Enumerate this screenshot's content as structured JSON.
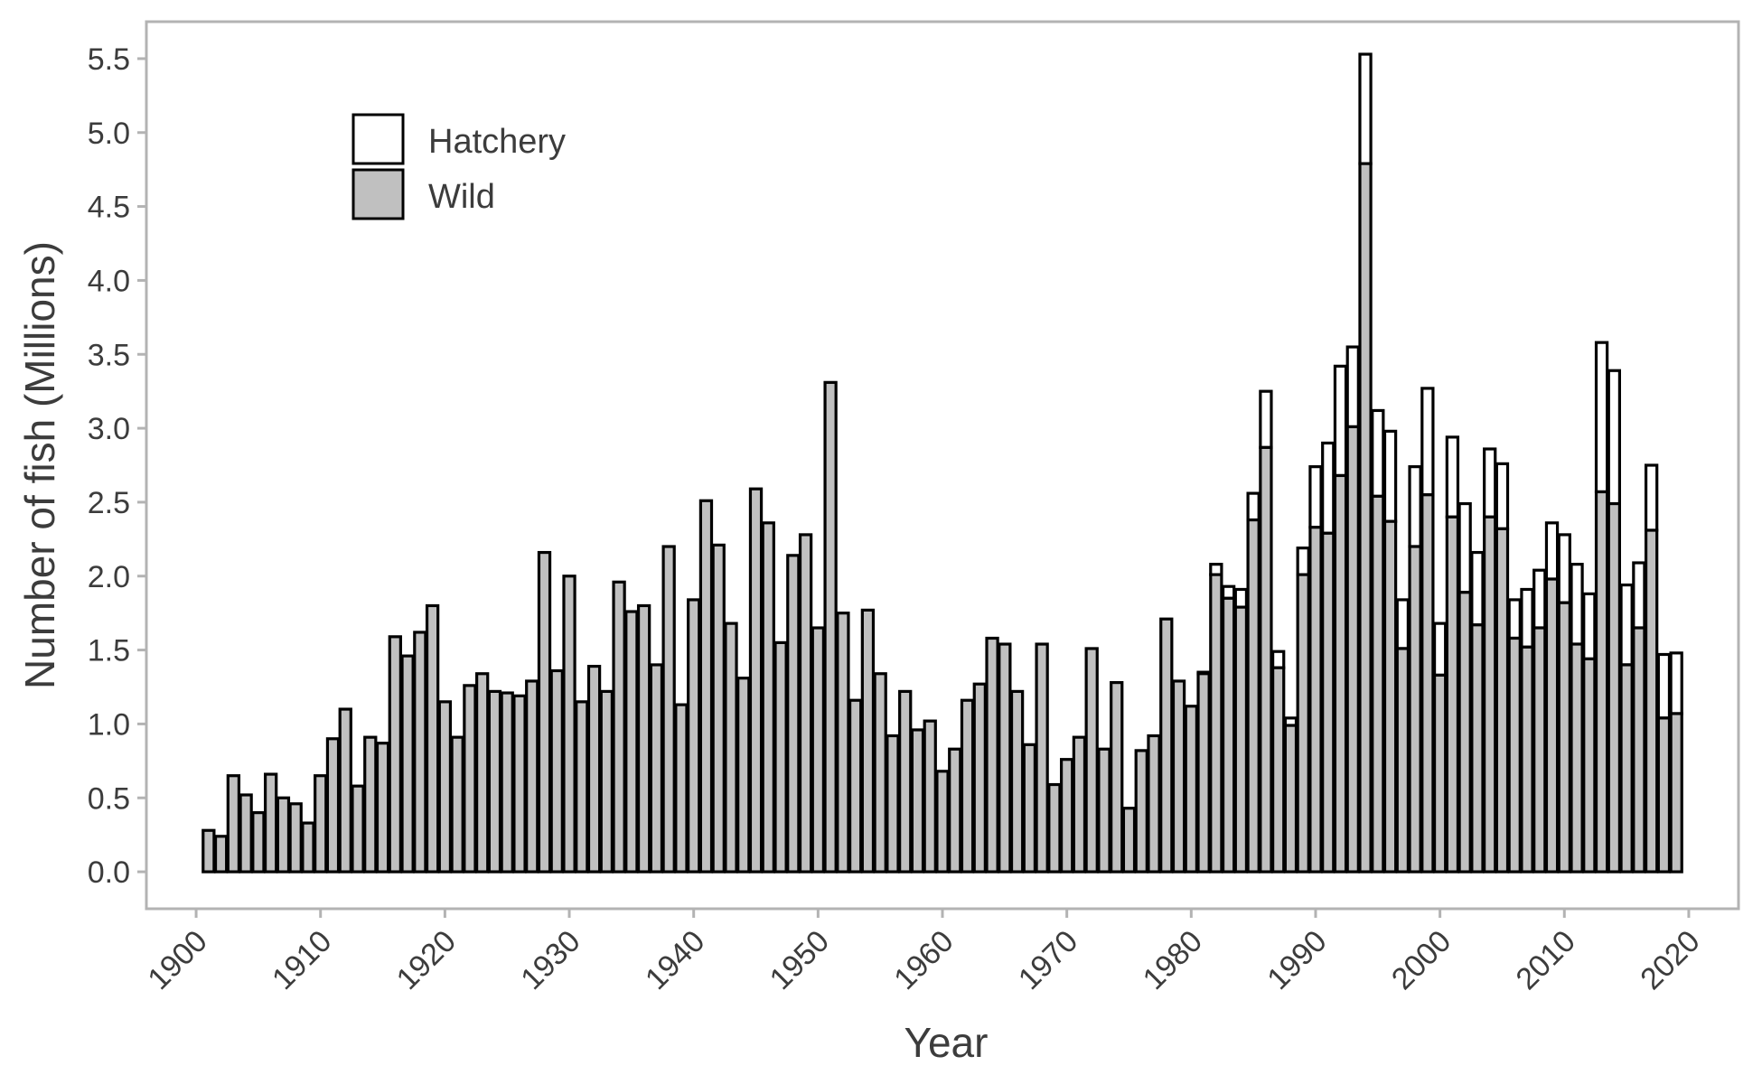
{
  "chart_data": {
    "type": "bar",
    "stacked": true,
    "xlabel": "Year",
    "ylabel": "Number of fish (Millions)",
    "ylim": [
      -0.25,
      5.75
    ],
    "xlim": [
      1896,
      2024
    ],
    "yticks": [
      0.0,
      0.5,
      1.0,
      1.5,
      2.0,
      2.5,
      3.0,
      3.5,
      4.0,
      4.5,
      5.0,
      5.5
    ],
    "ytick_labels": [
      "0.0",
      "0.5",
      "1.0",
      "1.5",
      "2.0",
      "2.5",
      "3.0",
      "3.5",
      "4.0",
      "4.5",
      "5.0",
      "5.5"
    ],
    "xticks": [
      1900,
      1910,
      1920,
      1930,
      1940,
      1950,
      1960,
      1970,
      1980,
      1990,
      2000,
      2010,
      2020
    ],
    "xtick_labels": [
      "1900",
      "1910",
      "1920",
      "1930",
      "1940",
      "1950",
      "1960",
      "1970",
      "1980",
      "1990",
      "2000",
      "2010",
      "2020"
    ],
    "grid": false,
    "legend_position": "top-left",
    "years": [
      1901,
      1902,
      1903,
      1904,
      1905,
      1906,
      1907,
      1908,
      1909,
      1910,
      1911,
      1912,
      1913,
      1914,
      1915,
      1916,
      1917,
      1918,
      1919,
      1920,
      1921,
      1922,
      1923,
      1924,
      1925,
      1926,
      1927,
      1928,
      1929,
      1930,
      1931,
      1932,
      1933,
      1934,
      1935,
      1936,
      1937,
      1938,
      1939,
      1940,
      1941,
      1942,
      1943,
      1944,
      1945,
      1946,
      1947,
      1948,
      1949,
      1950,
      1951,
      1952,
      1953,
      1954,
      1955,
      1956,
      1957,
      1958,
      1959,
      1960,
      1961,
      1962,
      1963,
      1964,
      1965,
      1966,
      1967,
      1968,
      1969,
      1970,
      1971,
      1972,
      1973,
      1974,
      1975,
      1976,
      1977,
      1978,
      1979,
      1980,
      1981,
      1982,
      1983,
      1984,
      1985,
      1986,
      1987,
      1988,
      1989,
      1990,
      1991,
      1992,
      1993,
      1994,
      1995,
      1996,
      1997,
      1998,
      1999,
      2000,
      2001,
      2002,
      2003,
      2004,
      2005,
      2006,
      2007,
      2008,
      2009,
      2010,
      2011,
      2012,
      2013,
      2014,
      2015,
      2016,
      2017,
      2018,
      2019
    ],
    "series": [
      {
        "name": "Wild",
        "color": "#c0c0c0",
        "values": [
          0.28,
          0.24,
          0.65,
          0.52,
          0.4,
          0.66,
          0.5,
          0.46,
          0.33,
          0.65,
          0.9,
          1.1,
          0.58,
          0.91,
          0.87,
          1.59,
          1.46,
          1.62,
          1.8,
          1.15,
          0.91,
          1.26,
          1.34,
          1.22,
          1.21,
          1.19,
          1.29,
          2.16,
          1.36,
          2.0,
          1.15,
          1.39,
          1.22,
          1.96,
          1.76,
          1.8,
          1.4,
          2.2,
          1.13,
          1.84,
          2.51,
          2.21,
          1.68,
          1.31,
          2.59,
          2.36,
          1.55,
          2.14,
          2.28,
          1.65,
          3.31,
          1.75,
          1.16,
          1.77,
          1.34,
          0.92,
          1.22,
          0.96,
          1.02,
          0.68,
          0.83,
          1.16,
          1.27,
          1.58,
          1.54,
          1.22,
          0.86,
          1.54,
          0.59,
          0.76,
          0.91,
          1.51,
          0.83,
          1.28,
          0.43,
          0.82,
          0.92,
          1.71,
          1.29,
          1.12,
          1.34,
          2.01,
          1.85,
          1.79,
          2.38,
          2.87,
          1.38,
          0.99,
          2.01,
          2.33,
          2.29,
          2.68,
          3.01,
          4.79,
          2.54,
          2.37,
          1.51,
          2.2,
          2.55,
          1.33,
          2.4,
          1.89,
          1.67,
          2.4,
          2.32,
          1.58,
          1.52,
          1.65,
          1.98,
          1.82,
          1.54,
          1.44,
          2.57,
          2.49,
          1.4,
          1.65,
          2.31,
          1.04,
          1.07
        ]
      },
      {
        "name": "Hatchery",
        "color": "#ffffff",
        "values": [
          0,
          0,
          0,
          0,
          0,
          0,
          0,
          0,
          0,
          0,
          0,
          0,
          0,
          0,
          0,
          0,
          0,
          0,
          0,
          0,
          0,
          0,
          0,
          0,
          0,
          0,
          0,
          0,
          0,
          0,
          0,
          0,
          0,
          0,
          0,
          0,
          0,
          0,
          0,
          0,
          0,
          0,
          0,
          0,
          0,
          0,
          0,
          0,
          0,
          0,
          0,
          0,
          0,
          0,
          0,
          0,
          0,
          0,
          0,
          0,
          0,
          0,
          0,
          0,
          0,
          0,
          0,
          0,
          0,
          0,
          0,
          0,
          0,
          0,
          0,
          0,
          0,
          0,
          0,
          0,
          0.01,
          0.07,
          0.08,
          0.12,
          0.18,
          0.38,
          0.11,
          0.05,
          0.18,
          0.41,
          0.61,
          0.74,
          0.54,
          0.74,
          0.58,
          0.61,
          0.33,
          0.54,
          0.72,
          0.35,
          0.54,
          0.6,
          0.49,
          0.46,
          0.44,
          0.26,
          0.39,
          0.39,
          0.38,
          0.46,
          0.54,
          0.44,
          1.01,
          0.9,
          0.54,
          0.44,
          0.44,
          0.43,
          0.41
        ]
      }
    ]
  }
}
